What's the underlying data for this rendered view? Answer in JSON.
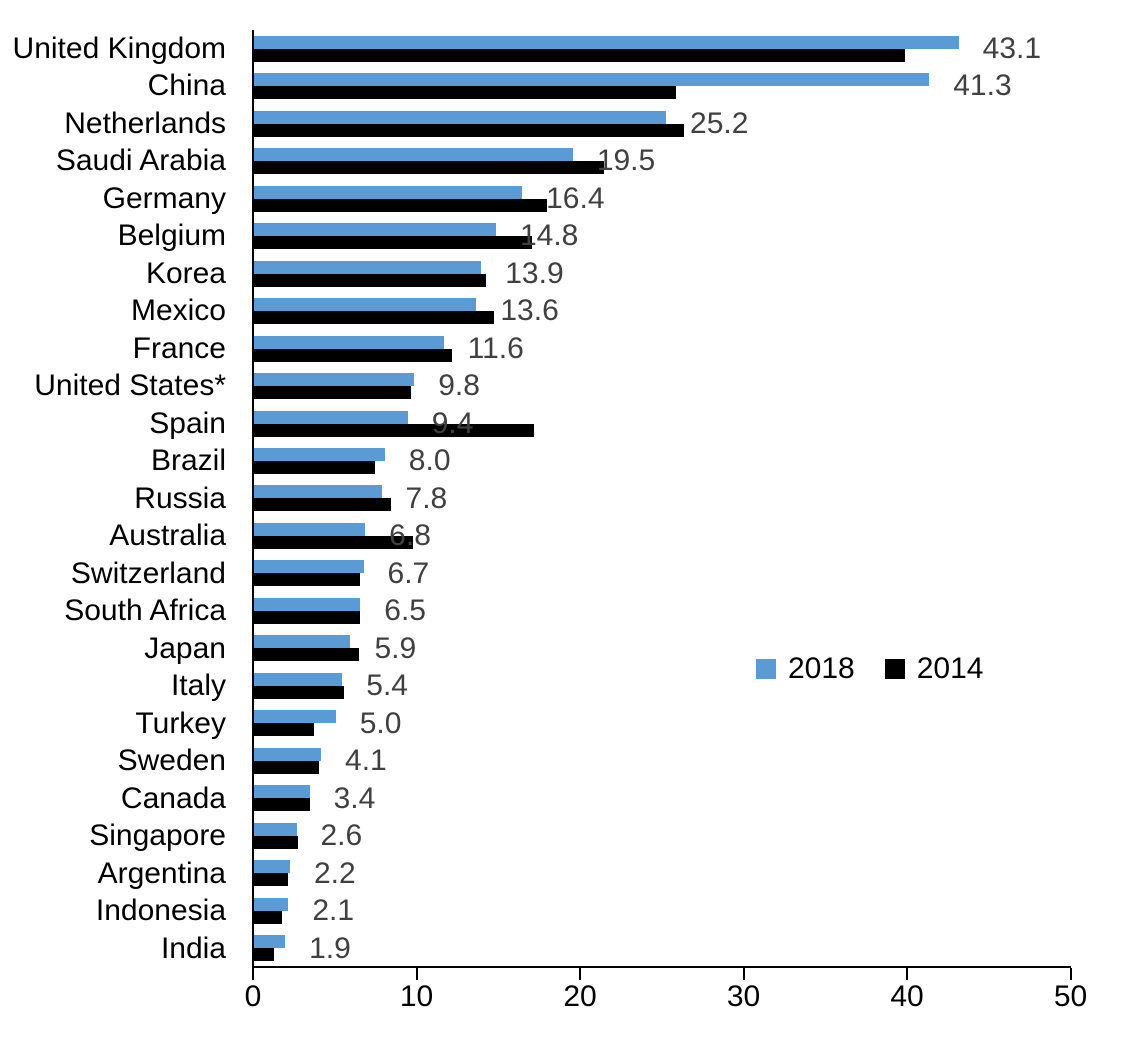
{
  "chart_data": {
    "type": "bar",
    "orientation": "horizontal",
    "title": "",
    "xlabel": "",
    "ylabel": "",
    "xlim": [
      0,
      50
    ],
    "x_ticks": [
      "0",
      "10",
      "20",
      "30",
      "40",
      "50"
    ],
    "grid": false,
    "legend_position": "middle-right",
    "categories": [
      "United Kingdom",
      "China",
      "Netherlands",
      "Saudi Arabia",
      "Germany",
      "Belgium",
      "Korea",
      "Mexico",
      "France",
      "United States*",
      "Spain",
      "Brazil",
      "Russia",
      "Australia",
      "Switzerland",
      "South Africa",
      "Japan",
      "Italy",
      "Turkey",
      "Sweden",
      "Canada",
      "Singapore",
      "Argentina",
      "Indonesia",
      "India"
    ],
    "series": [
      {
        "name": "2018",
        "color": "#5B9BD5",
        "values": [
          43.1,
          41.3,
          25.2,
          19.5,
          16.4,
          14.8,
          13.9,
          13.6,
          11.6,
          9.8,
          9.4,
          8.0,
          7.8,
          6.8,
          6.7,
          6.5,
          5.9,
          5.4,
          5.0,
          4.1,
          3.4,
          2.6,
          2.2,
          2.1,
          1.9
        ],
        "data_labels": [
          "43.1",
          "41.3",
          "25.2",
          "19.5",
          "16.4",
          "14.8",
          "13.9",
          "13.6",
          "11.6",
          "9.8",
          "9.4",
          "8.0",
          "7.8",
          "6.8",
          "6.7",
          "6.5",
          "5.9",
          "5.4",
          "5.0",
          "4.1",
          "3.4",
          "2.6",
          "2.2",
          "2.1",
          "1.9"
        ],
        "labels_visible": true
      },
      {
        "name": "2014",
        "color": "#000000",
        "values": [
          39.8,
          25.8,
          26.3,
          21.4,
          17.9,
          17.0,
          14.2,
          14.7,
          12.1,
          9.6,
          17.1,
          7.4,
          8.4,
          9.7,
          6.5,
          6.5,
          6.4,
          5.5,
          3.7,
          4.0,
          3.4,
          2.7,
          2.1,
          1.7,
          1.2
        ],
        "values_estimated": true,
        "labels_visible": false
      }
    ],
    "colors": {
      "data_label": "#404040",
      "axis": "#000000",
      "text": "#000000",
      "background": "#FFFFFF"
    }
  }
}
